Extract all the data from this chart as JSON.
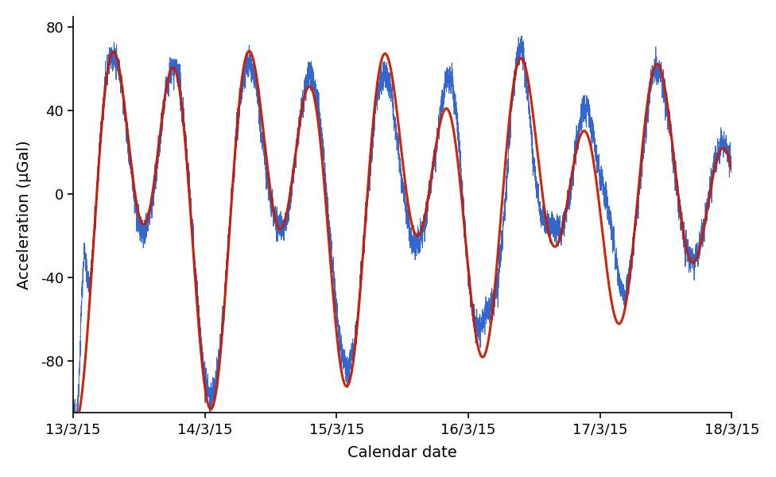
{
  "title": "",
  "xlabel": "Calendar date",
  "ylabel": "Acceleration (μGal)",
  "xlim": [
    0,
    5.0
  ],
  "ylim": [
    -105,
    85
  ],
  "yticks": [
    -80,
    -40,
    0,
    40,
    80
  ],
  "xtick_labels": [
    "13/3/15",
    "14/3/15",
    "15/3/15",
    "16/3/15",
    "17/3/15",
    "18/3/15"
  ],
  "xtick_positions": [
    0,
    1,
    2,
    3,
    4,
    5
  ],
  "blue_color": "#1e56c8",
  "red_color": "#cc1a00",
  "background_color": "#ffffff",
  "figsize": [
    9.76,
    6.0
  ],
  "dpi": 100
}
